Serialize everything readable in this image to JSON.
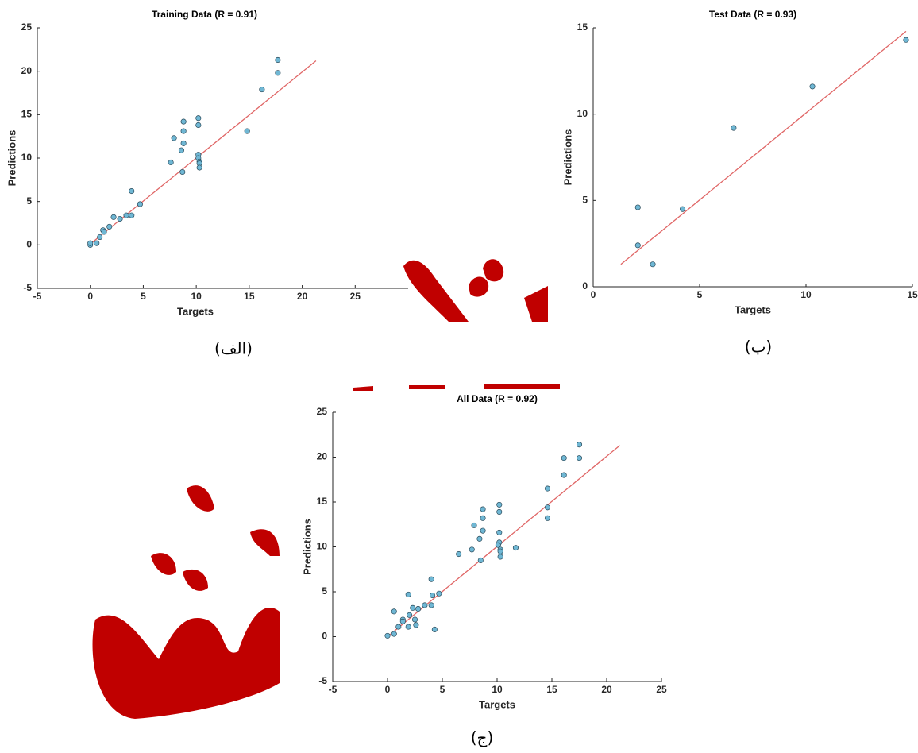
{
  "chart_data": [
    {
      "type": "scatter",
      "title": "Training Data (R = 0.91)",
      "x_label": "Targets",
      "y_label": "Predictions",
      "caption": "(الف)",
      "xlim": [
        -5,
        30
      ],
      "ylim": [
        -5,
        25
      ],
      "xticks": [
        -5,
        0,
        5,
        10,
        15,
        20,
        25
      ],
      "yticks": [
        -5,
        0,
        5,
        10,
        15,
        20,
        25
      ],
      "points": {
        "color": "#6fb7d4",
        "x": [
          0,
          0,
          0.6,
          0.9,
          1.2,
          1.3,
          1.8,
          2.2,
          2.8,
          3.4,
          3.9,
          3.9,
          4.7,
          7.6,
          7.9,
          8.6,
          8.7,
          8.8,
          8.8,
          8.8,
          10.2,
          10.2,
          10.2,
          10.2,
          10.3,
          10.3,
          10.3,
          14.8,
          16.2,
          17.7,
          17.7
        ],
        "y": [
          0,
          0.2,
          0.2,
          0.9,
          1.7,
          1.5,
          2.1,
          3.2,
          3,
          3.4,
          3.4,
          6.2,
          4.7,
          9.5,
          12.3,
          10.9,
          8.4,
          14.2,
          13.1,
          11.7,
          14.6,
          13.8,
          10.4,
          10,
          9.6,
          9.4,
          8.9,
          13.1,
          17.9,
          21.3,
          19.8
        ]
      },
      "fit": {
        "color": "#e06666",
        "x": [
          0,
          21.3
        ],
        "y": [
          0.1,
          21.2
        ]
      }
    },
    {
      "type": "scatter",
      "title": "Test Data (R = 0.93)",
      "x_label": "Targets",
      "y_label": "Predictions",
      "caption": "(ب)",
      "xlim": [
        0,
        15
      ],
      "ylim": [
        0,
        15
      ],
      "xticks": [
        0,
        5,
        10,
        15
      ],
      "yticks": [
        0,
        5,
        10,
        15
      ],
      "points": {
        "color": "#6fb7d4",
        "x": [
          2.1,
          2.1,
          2.8,
          4.2,
          6.6,
          10.3,
          14.7
        ],
        "y": [
          4.6,
          2.4,
          1.3,
          4.5,
          9.2,
          11.6,
          14.3
        ]
      },
      "fit": {
        "color": "#e06666",
        "x": [
          1.3,
          14.7
        ],
        "y": [
          1.3,
          14.8
        ]
      }
    },
    {
      "type": "scatter",
      "title": "All Data (R = 0.92)",
      "x_label": "Targets",
      "y_label": "Predictions",
      "caption": "(ج)",
      "xlim": [
        -5,
        25
      ],
      "ylim": [
        -5,
        25
      ],
      "xticks": [
        -5,
        0,
        5,
        10,
        15,
        20,
        25
      ],
      "yticks": [
        -5,
        0,
        5,
        10,
        15,
        20,
        25
      ],
      "points": {
        "color": "#6fb7d4",
        "x": [
          0,
          0.6,
          0.6,
          1,
          1.4,
          1.4,
          1.9,
          1.9,
          2,
          2.3,
          2.5,
          2.6,
          2.8,
          3.4,
          4,
          4,
          4.1,
          4.3,
          4.7,
          6.5,
          7.7,
          7.9,
          8.4,
          8.5,
          8.7,
          8.7,
          8.7,
          10.2,
          10.2,
          10.2,
          10.2,
          10.1,
          10.3,
          10.3,
          10.3,
          11.7,
          14.6,
          14.6,
          14.6,
          16.1,
          16.1,
          17.5,
          17.5
        ],
        "y": [
          0.1,
          2.8,
          0.3,
          1.1,
          1.9,
          1.7,
          4.7,
          1.1,
          2.4,
          3.2,
          1.9,
          1.3,
          3.1,
          3.5,
          6.4,
          3.5,
          4.6,
          0.8,
          4.8,
          9.2,
          9.7,
          12.4,
          10.9,
          8.5,
          14.2,
          13.2,
          11.8,
          14.7,
          13.9,
          11.6,
          10.5,
          10.2,
          9.7,
          9.5,
          8.9,
          9.9,
          16.5,
          14.4,
          13.2,
          19.9,
          18,
          21.4,
          19.9
        ]
      },
      "fit": {
        "color": "#e06666",
        "x": [
          0,
          21.2
        ],
        "y": [
          0,
          21.3
        ]
      }
    }
  ]
}
